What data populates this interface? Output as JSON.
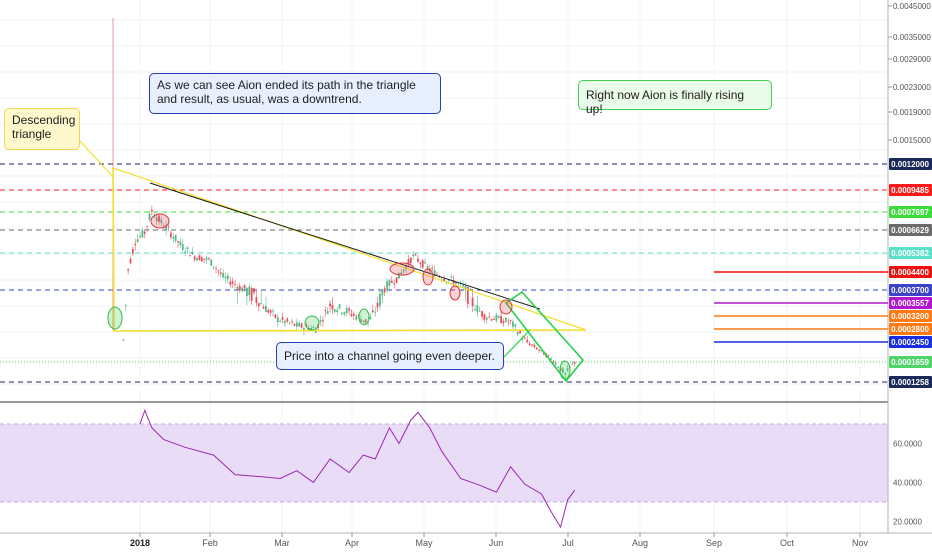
{
  "chart_data": {
    "type": "candlestick",
    "price_axis": {
      "ticks": [
        "0.0045000",
        "0.0035000",
        "0.0029000",
        "0.0023000",
        "0.0019000",
        "0.0015000"
      ]
    },
    "time_axis": {
      "labels": [
        "2018",
        "Feb",
        "Mar",
        "Apr",
        "May",
        "Jun",
        "Jul",
        "Aug",
        "Sep",
        "Oct",
        "Nov"
      ]
    },
    "price_series_estimate": [
      [
        "2017-12-25",
        0.00025
      ],
      [
        "2017-12-27",
        0.00045
      ],
      [
        "2017-12-30",
        0.0006
      ],
      [
        "2018-01-03",
        0.00065
      ],
      [
        "2018-01-06",
        0.00078
      ],
      [
        "2018-01-09",
        0.00072
      ],
      [
        "2018-01-13",
        0.00066
      ],
      [
        "2018-01-18",
        0.00058
      ],
      [
        "2018-01-24",
        0.00052
      ],
      [
        "2018-01-30",
        0.0005
      ],
      [
        "2018-02-05",
        0.00042
      ],
      [
        "2018-02-12",
        0.00038
      ],
      [
        "2018-02-20",
        0.00036
      ],
      [
        "2018-02-28",
        0.00031
      ],
      [
        "2018-03-08",
        0.00029
      ],
      [
        "2018-03-16",
        0.00028
      ],
      [
        "2018-03-22",
        0.00035
      ],
      [
        "2018-03-30",
        0.00033
      ],
      [
        "2018-04-07",
        0.0003
      ],
      [
        "2018-04-14",
        0.00038
      ],
      [
        "2018-04-20",
        0.00042
      ],
      [
        "2018-04-26",
        0.00052
      ],
      [
        "2018-05-02",
        0.00046
      ],
      [
        "2018-05-08",
        0.00042
      ],
      [
        "2018-05-14",
        0.0004
      ],
      [
        "2018-05-20",
        0.00036
      ],
      [
        "2018-05-26",
        0.00032
      ],
      [
        "2018-06-01",
        0.00031
      ],
      [
        "2018-06-06",
        0.0003
      ],
      [
        "2018-06-12",
        0.00025
      ],
      [
        "2018-06-18",
        0.00021
      ],
      [
        "2018-06-24",
        0.00017
      ],
      [
        "2018-06-29",
        0.00014
      ],
      [
        "2018-07-03",
        0.000166
      ]
    ],
    "horizontal_levels": [
      {
        "label": "0.0012000",
        "color": "#1c2a5a",
        "style": "dashed",
        "value": 0.0012
      },
      {
        "label": "0.0009485",
        "color": "#ff1a1a",
        "style": "dashed",
        "value": 0.0009485
      },
      {
        "label": "0.0007697",
        "color": "#3ddc3d",
        "style": "dashed",
        "value": 0.0007697
      },
      {
        "label": "0.0006629",
        "color": "#6b6b6b",
        "style": "dashed",
        "value": 0.0006629
      },
      {
        "label": "0.0005382",
        "color": "#5ce0c8",
        "style": "dashed",
        "value": 0.0005382
      },
      {
        "label": "0.0003700",
        "color": "#3b44c9",
        "style": "dashed",
        "value": 0.00037
      },
      {
        "label": "0.0001659",
        "color": "#4fd46a",
        "style": "dotted",
        "value": 0.0001659
      },
      {
        "label": "0.0001258",
        "color": "#1c2a5a",
        "style": "dashed",
        "value": 0.0001258
      }
    ],
    "short_levels": [
      {
        "label": "0.0004400",
        "color": "#ee1111",
        "value": 0.00044
      },
      {
        "label": "0.0003557",
        "color": "#b018c9",
        "value": 0.0003557
      },
      {
        "label": "0.0003200",
        "color": "#ff7a14",
        "value": 0.00032
      },
      {
        "label": "0.0002800",
        "color": "#ff7a14",
        "value": 0.00028
      },
      {
        "label": "0.0002450",
        "color": "#1a2fe0",
        "value": 0.000245
      }
    ],
    "rsi": {
      "upper_band": 70,
      "lower_band": 30,
      "ticks": [
        "60.0000",
        "40.0000",
        "20.0000"
      ],
      "series_estimate": [
        [
          "2018-01-01",
          70
        ],
        [
          "2018-01-03",
          77
        ],
        [
          "2018-01-06",
          68
        ],
        [
          "2018-01-11",
          62
        ],
        [
          "2018-01-20",
          58
        ],
        [
          "2018-02-01",
          54
        ],
        [
          "2018-02-10",
          44
        ],
        [
          "2018-02-20",
          43
        ],
        [
          "2018-03-01",
          42
        ],
        [
          "2018-03-08",
          46
        ],
        [
          "2018-03-15",
          40
        ],
        [
          "2018-03-22",
          52
        ],
        [
          "2018-03-30",
          45
        ],
        [
          "2018-04-05",
          54
        ],
        [
          "2018-04-10",
          52
        ],
        [
          "2018-04-16",
          68
        ],
        [
          "2018-04-20",
          60
        ],
        [
          "2018-04-25",
          72
        ],
        [
          "2018-04-28",
          76
        ],
        [
          "2018-05-03",
          68
        ],
        [
          "2018-05-08",
          56
        ],
        [
          "2018-05-16",
          42
        ],
        [
          "2018-05-23",
          39
        ],
        [
          "2018-05-31",
          35
        ],
        [
          "2018-06-06",
          48
        ],
        [
          "2018-06-12",
          39
        ],
        [
          "2018-06-19",
          34
        ],
        [
          "2018-06-23",
          25
        ],
        [
          "2018-06-27",
          17
        ],
        [
          "2018-06-30",
          31
        ],
        [
          "2018-07-03",
          36
        ]
      ]
    }
  },
  "annotations": {
    "descending_triangle": "Descending triangle",
    "aion_ended": "As we can see Aion ended its path in the triangle and result, as usual, was a downtrend.",
    "rising": "Right now Aion is finally rising up!",
    "channel": "Price into a channel going even deeper."
  },
  "colors": {
    "up_candle": "#53b987",
    "down_candle": "#eb4d5c",
    "rsi_line": "#9c27b0",
    "rsi_band": "#e9dcf7",
    "triangle": "#f4df2d",
    "channel": "#22d44a"
  }
}
